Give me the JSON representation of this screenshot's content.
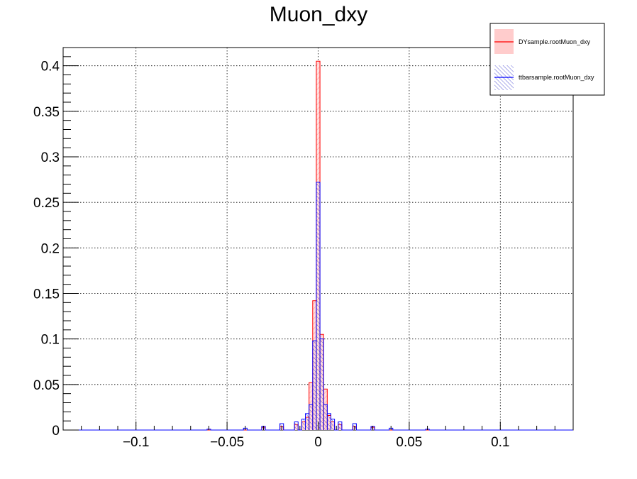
{
  "chart_data": {
    "type": "bar",
    "title": "Muon_dxy",
    "xlabel": "",
    "ylabel": "",
    "xlim": [
      -0.14,
      0.14
    ],
    "ylim": [
      0,
      0.42
    ],
    "grid": true,
    "legend_position": "top-right",
    "x_ticks": [
      -0.1,
      -0.05,
      0,
      0.05,
      0.1
    ],
    "x_tick_labels": [
      "−0.1",
      "−0.05",
      "0",
      "0.05",
      "0.1"
    ],
    "y_ticks": [
      0,
      0.05,
      0.1,
      0.15,
      0.2,
      0.25,
      0.3,
      0.35,
      0.4
    ],
    "y_tick_labels": [
      "0",
      "0.05",
      "0.1",
      "0.15",
      "0.2",
      "0.25",
      "0.3",
      "0.35",
      "0.4"
    ],
    "bin_width": 0.002,
    "series": [
      {
        "name": "DYsample.rootMuon_dxy",
        "color": "#ff0000",
        "fill": "#ffcccc",
        "x": [
          -0.03,
          -0.02,
          -0.012,
          -0.008,
          -0.006,
          -0.004,
          -0.002,
          0.0,
          0.002,
          0.004,
          0.006,
          0.008,
          0.012,
          0.02,
          0.03
        ],
        "y": [
          0.003,
          0.004,
          0.006,
          0.009,
          0.014,
          0.052,
          0.142,
          0.405,
          0.105,
          0.045,
          0.016,
          0.009,
          0.006,
          0.004,
          0.003
        ]
      },
      {
        "name": "ttbarsample.rootMuon_dxy",
        "color": "#0000ff",
        "fill": "#3333cc",
        "x": [
          -0.06,
          -0.04,
          -0.03,
          -0.02,
          -0.012,
          -0.008,
          -0.006,
          -0.004,
          -0.002,
          0.0,
          0.002,
          0.004,
          0.006,
          0.008,
          0.012,
          0.02,
          0.03,
          0.04,
          0.06
        ],
        "y": [
          0.001,
          0.002,
          0.004,
          0.007,
          0.009,
          0.012,
          0.018,
          0.028,
          0.098,
          0.272,
          0.1,
          0.028,
          0.018,
          0.012,
          0.009,
          0.007,
          0.004,
          0.002,
          0.001
        ]
      }
    ]
  }
}
